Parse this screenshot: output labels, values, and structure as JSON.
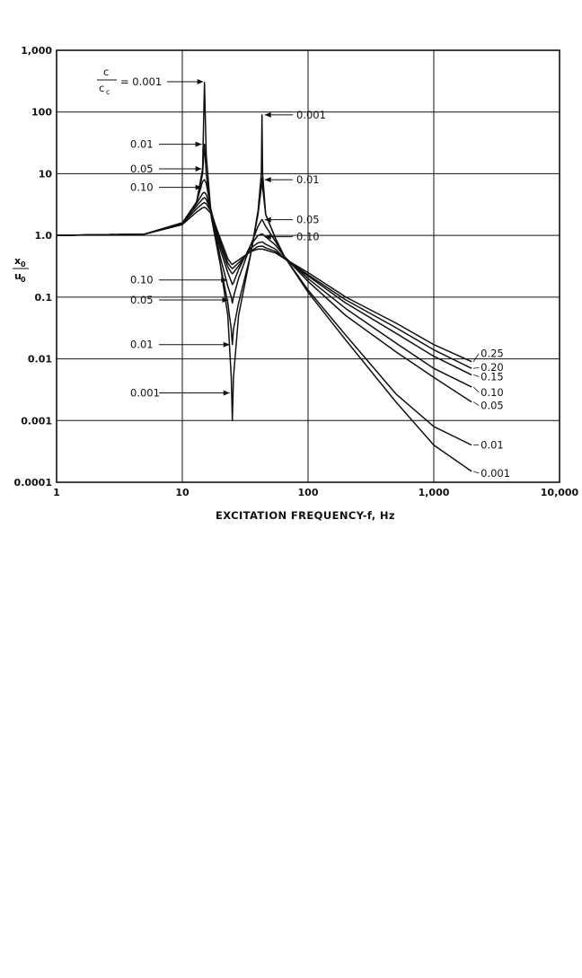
{
  "chart_data": {
    "type": "line",
    "title": "",
    "xlabel": "EXCITATION FREQUENCY-f, Hz",
    "ylabel": {
      "numerator": "x",
      "numerator_sub": "0",
      "denominator": "u",
      "denominator_sub": "0"
    },
    "xscale": "log",
    "yscale": "log",
    "xlim": [
      1,
      10000
    ],
    "ylim": [
      0.0001,
      1000
    ],
    "grid": true,
    "x_ticks": [
      "1",
      "10",
      "100",
      "1,000",
      "10,000"
    ],
    "y_ticks": [
      "0.0001",
      "0.001",
      "0.01",
      "0.1",
      "1.0",
      "10",
      "100",
      "1,000"
    ],
    "legend_header": {
      "numerator": "c",
      "denominator": "c",
      "denominator_sub": "c",
      "suffix": "= 0.001"
    },
    "series": [
      {
        "name": "0.001",
        "label": "0.001",
        "x": [
          1,
          5,
          10,
          13,
          14.5,
          15,
          15.5,
          17,
          20,
          23,
          24.5,
          25,
          25.5,
          28,
          35,
          40,
          42.5,
          43,
          43.5,
          46,
          55,
          65,
          100,
          200,
          500,
          1000,
          2000
        ],
        "y": [
          1,
          1.05,
          1.5,
          3.5,
          12,
          300,
          20,
          2,
          0.35,
          0.05,
          0.005,
          0.001,
          0.005,
          0.05,
          0.5,
          2.5,
          10,
          90,
          10,
          2.2,
          0.9,
          0.45,
          0.12,
          0.02,
          0.002,
          0.0004,
          0.00015
        ]
      },
      {
        "name": "0.01",
        "label": "0.01",
        "x": [
          1,
          5,
          10,
          13,
          14.5,
          15,
          15.5,
          17,
          20,
          23,
          24.5,
          25,
          25.5,
          28,
          35,
          40,
          42.5,
          43,
          43.5,
          46,
          55,
          65,
          100,
          200,
          500,
          1000,
          2000
        ],
        "y": [
          1,
          1.05,
          1.5,
          3.5,
          10,
          30,
          10,
          2,
          0.35,
          0.08,
          0.03,
          0.017,
          0.03,
          0.08,
          0.5,
          2.2,
          6,
          8.5,
          6,
          2.2,
          0.9,
          0.45,
          0.13,
          0.024,
          0.0027,
          0.0008,
          0.0004
        ]
      },
      {
        "name": "0.05",
        "label": "0.05",
        "x": [
          1,
          5,
          10,
          13,
          14.5,
          15,
          15.5,
          17,
          20,
          23,
          24.5,
          25,
          25.5,
          28,
          35,
          40,
          42.5,
          43,
          43.5,
          46,
          55,
          65,
          100,
          200,
          500,
          1000,
          2000
        ],
        "y": [
          1,
          1.05,
          1.6,
          3.5,
          7.5,
          8,
          7,
          2.4,
          0.45,
          0.15,
          0.1,
          0.08,
          0.1,
          0.2,
          0.7,
          1.4,
          1.75,
          1.8,
          1.75,
          1.4,
          0.8,
          0.45,
          0.18,
          0.05,
          0.013,
          0.005,
          0.002
        ]
      },
      {
        "name": "0.10",
        "label": "0.10",
        "x": [
          1,
          5,
          10,
          13,
          14.5,
          15,
          15.5,
          17,
          20,
          23,
          24.5,
          25,
          25.5,
          28,
          35,
          40,
          42.5,
          43,
          43.5,
          46,
          55,
          65,
          100,
          200,
          500,
          1000,
          2000
        ],
        "y": [
          1,
          1.05,
          1.6,
          3.3,
          4.8,
          5,
          4.6,
          2.5,
          0.6,
          0.25,
          0.18,
          0.16,
          0.17,
          0.28,
          0.7,
          1.0,
          1.05,
          1.05,
          1.05,
          0.95,
          0.7,
          0.45,
          0.2,
          0.065,
          0.018,
          0.007,
          0.0035
        ]
      },
      {
        "name": "0.15",
        "label": "0.15",
        "x": [
          1,
          5,
          10,
          13,
          14.5,
          15,
          15.5,
          17,
          20,
          23,
          24.5,
          25,
          25.5,
          28,
          35,
          40,
          42.5,
          43,
          43.5,
          46,
          55,
          65,
          100,
          200,
          500,
          1000,
          2000
        ],
        "y": [
          1,
          1.05,
          1.6,
          3.0,
          3.9,
          4.1,
          3.8,
          2.5,
          0.7,
          0.31,
          0.25,
          0.24,
          0.25,
          0.32,
          0.62,
          0.76,
          0.78,
          0.78,
          0.78,
          0.72,
          0.6,
          0.42,
          0.22,
          0.08,
          0.026,
          0.011,
          0.0055
        ]
      },
      {
        "name": "0.20",
        "label": "0.20",
        "x": [
          1,
          5,
          10,
          13,
          14.5,
          15,
          15.5,
          17,
          20,
          23,
          24.5,
          25,
          25.5,
          28,
          35,
          40,
          42.5,
          43,
          43.5,
          46,
          55,
          65,
          100,
          200,
          500,
          1000,
          2000
        ],
        "y": [
          1,
          1.05,
          1.55,
          2.7,
          3.3,
          3.4,
          3.25,
          2.4,
          0.8,
          0.36,
          0.3,
          0.29,
          0.3,
          0.36,
          0.56,
          0.66,
          0.67,
          0.67,
          0.67,
          0.63,
          0.55,
          0.42,
          0.23,
          0.09,
          0.032,
          0.014,
          0.007
        ]
      },
      {
        "name": "0.25",
        "label": "0.25",
        "x": [
          1,
          5,
          10,
          13,
          14.5,
          15,
          15.5,
          17,
          20,
          23,
          24.5,
          25,
          25.5,
          28,
          35,
          40,
          42.5,
          43,
          43.5,
          46,
          55,
          65,
          100,
          200,
          500,
          1000,
          2000
        ],
        "y": [
          1,
          1.05,
          1.5,
          2.4,
          2.8,
          2.85,
          2.75,
          2.25,
          0.9,
          0.42,
          0.35,
          0.34,
          0.35,
          0.4,
          0.55,
          0.6,
          0.6,
          0.6,
          0.6,
          0.58,
          0.52,
          0.42,
          0.25,
          0.1,
          0.038,
          0.017,
          0.009
        ]
      }
    ],
    "annotations": [
      {
        "text": "0.01",
        "x": 15,
        "y": 30
      },
      {
        "text": "0.05",
        "x": 15,
        "y": 12
      },
      {
        "text": "0.10",
        "x": 15,
        "y": 6
      },
      {
        "text": "0.001",
        "x": 43,
        "y": 90
      },
      {
        "text": "0.01",
        "x": 43,
        "y": 8
      },
      {
        "text": "0.05",
        "x": 43,
        "y": 1.8
      },
      {
        "text": "0.10",
        "x": 43,
        "y": 0.95
      },
      {
        "text": "0.10",
        "x": 24,
        "y": 0.19
      },
      {
        "text": "0.05",
        "x": 24.5,
        "y": 0.09
      },
      {
        "text": "0.01",
        "x": 25,
        "y": 0.017
      },
      {
        "text": "0.001",
        "x": 25,
        "y": 0.0028
      }
    ]
  }
}
